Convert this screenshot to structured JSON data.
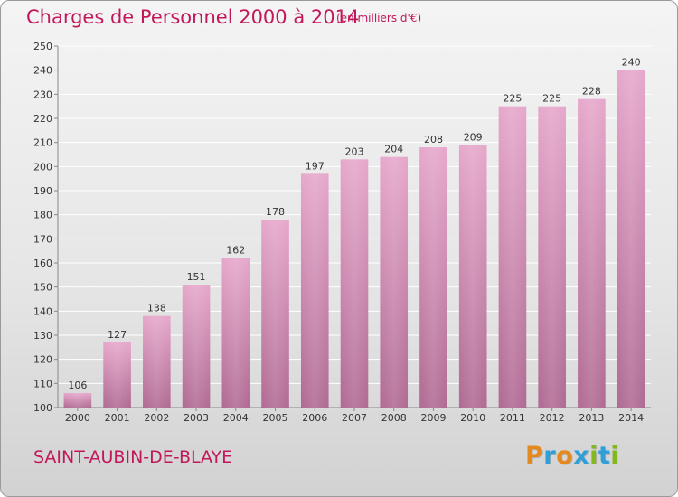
{
  "header": {
    "title": "Charges de Personnel 2000 à 2014",
    "subtitle": "(en milliers d'€)"
  },
  "footer": {
    "commune": "SAINT-AUBIN-DE-BLAYE",
    "logo_letters": [
      "P",
      "r",
      "o",
      "x",
      "i",
      "t",
      "i"
    ],
    "logo_colors": [
      "#e5891e",
      "#2e9fd8",
      "#e5891e",
      "#2e9fd8",
      "#84b820",
      "#2e9fd8",
      "#84b820"
    ]
  },
  "colors": {
    "bar_top": "#e6a7cb",
    "bar_bottom": "#b06a93",
    "accent": "#c2185b"
  },
  "chart_data": {
    "type": "bar",
    "title": "Charges de Personnel 2000 à 2014",
    "subtitle": "(en milliers d'€)",
    "categories": [
      "2000",
      "2001",
      "2002",
      "2003",
      "2004",
      "2005",
      "2006",
      "2007",
      "2008",
      "2009",
      "2010",
      "2011",
      "2012",
      "2013",
      "2014"
    ],
    "values": [
      106,
      127,
      138,
      151,
      162,
      178,
      197,
      203,
      204,
      208,
      209,
      225,
      225,
      228,
      240
    ],
    "ylim": [
      100,
      250
    ],
    "yticks": [
      100,
      110,
      120,
      130,
      140,
      150,
      160,
      170,
      180,
      190,
      200,
      210,
      220,
      230,
      240,
      250
    ],
    "grid": true
  }
}
